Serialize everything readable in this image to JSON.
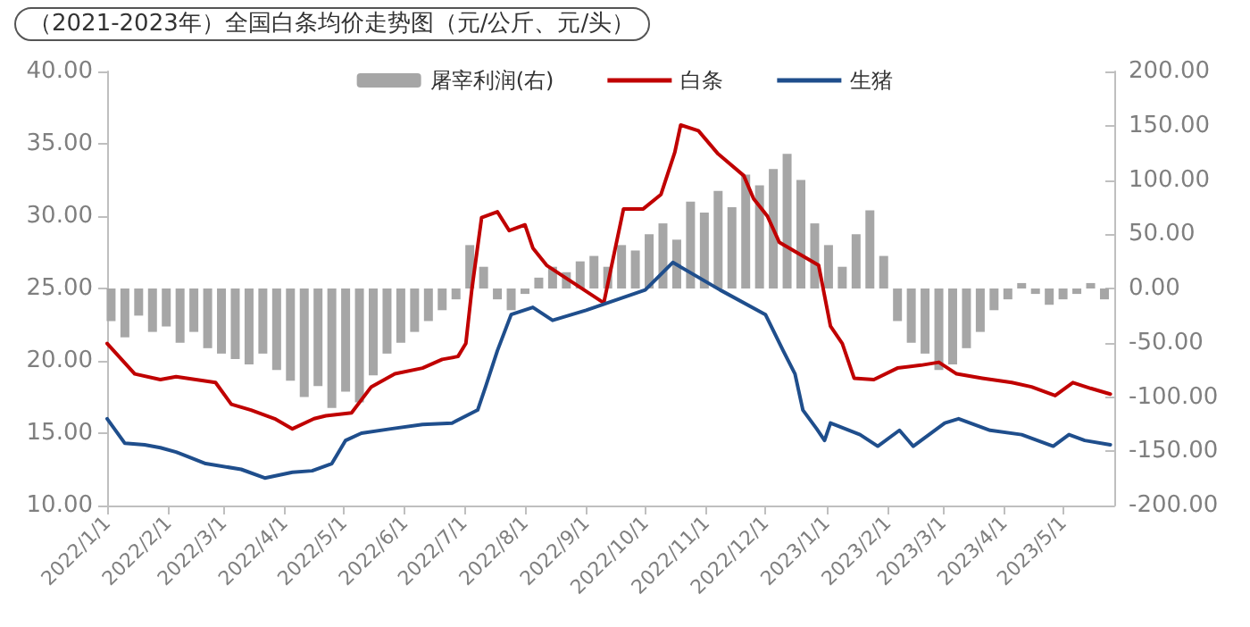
{
  "chart_data": {
    "type": "line",
    "title": "（2021-2023年）全国白条均价走势图（元/公斤、元/头）",
    "xlim": [
      "2022-01-01",
      "2023-05-27"
    ],
    "xticks": [
      {
        "value": "2022-01-01",
        "label": "2022/1/1"
      },
      {
        "value": "2022-02-01",
        "label": "2022/2/1"
      },
      {
        "value": "2022-03-01",
        "label": "2022/3/1"
      },
      {
        "value": "2022-04-01",
        "label": "2022/4/1"
      },
      {
        "value": "2022-05-01",
        "label": "2022/5/1"
      },
      {
        "value": "2022-06-01",
        "label": "2022/6/1"
      },
      {
        "value": "2022-07-01",
        "label": "2022/7/1"
      },
      {
        "value": "2022-08-01",
        "label": "2022/8/1"
      },
      {
        "value": "2022-09-01",
        "label": "2022/9/1"
      },
      {
        "value": "2022-10-01",
        "label": "2022/10/1"
      },
      {
        "value": "2022-11-01",
        "label": "2022/11/1"
      },
      {
        "value": "2022-12-01",
        "label": "2022/12/1"
      },
      {
        "value": "2023-01-01",
        "label": "2023/1/1"
      },
      {
        "value": "2023-02-01",
        "label": "2023/2/1"
      },
      {
        "value": "2023-03-01",
        "label": "2023/3/1"
      },
      {
        "value": "2023-04-01",
        "label": "2023/4/1"
      },
      {
        "value": "2023-05-01",
        "label": "2023/5/1"
      }
    ],
    "ylim": [
      10,
      40
    ],
    "yticks": [
      {
        "value": 10,
        "label": "10.00"
      },
      {
        "value": 15,
        "label": "15.00"
      },
      {
        "value": 20,
        "label": "20.00"
      },
      {
        "value": 25,
        "label": "25.00"
      },
      {
        "value": 30,
        "label": "30.00"
      },
      {
        "value": 35,
        "label": "35.00"
      },
      {
        "value": 40,
        "label": "40.00"
      }
    ],
    "y2lim": [
      -200,
      200
    ],
    "y2ticks": [
      {
        "value": -200,
        "label": "-200.00"
      },
      {
        "value": -150,
        "label": "-150.00"
      },
      {
        "value": -100,
        "label": "-100.00"
      },
      {
        "value": -50,
        "label": "-50.00"
      },
      {
        "value": 0,
        "label": "0.00"
      },
      {
        "value": 50,
        "label": "50.00"
      },
      {
        "value": 100,
        "label": "100.00"
      },
      {
        "value": 150,
        "label": "150.00"
      },
      {
        "value": 200,
        "label": "200.00"
      }
    ],
    "grid": false,
    "legend": "top",
    "marker": "none",
    "line_style": "solid",
    "series": [
      {
        "name": "屠宰利润(右)",
        "type": "bar",
        "axis": "y2",
        "color": "#a6a6a6",
        "x": [
          "2022-01-03",
          "2022-01-10",
          "2022-01-17",
          "2022-01-24",
          "2022-01-31",
          "2022-02-07",
          "2022-02-14",
          "2022-02-21",
          "2022-02-28",
          "2022-03-07",
          "2022-03-14",
          "2022-03-21",
          "2022-03-28",
          "2022-04-04",
          "2022-04-11",
          "2022-04-18",
          "2022-04-25",
          "2022-05-02",
          "2022-05-09",
          "2022-05-16",
          "2022-05-23",
          "2022-05-30",
          "2022-06-06",
          "2022-06-13",
          "2022-06-20",
          "2022-06-27",
          "2022-07-04",
          "2022-07-11",
          "2022-07-18",
          "2022-07-25",
          "2022-08-01",
          "2022-08-08",
          "2022-08-15",
          "2022-08-22",
          "2022-08-29",
          "2022-09-05",
          "2022-09-12",
          "2022-09-19",
          "2022-09-26",
          "2022-10-03",
          "2022-10-10",
          "2022-10-17",
          "2022-10-24",
          "2022-10-31",
          "2022-11-07",
          "2022-11-14",
          "2022-11-21",
          "2022-11-28",
          "2022-12-05",
          "2022-12-12",
          "2022-12-19",
          "2022-12-26",
          "2023-01-02",
          "2023-01-09",
          "2023-01-16",
          "2023-01-23",
          "2023-01-30",
          "2023-02-06",
          "2023-02-13",
          "2023-02-20",
          "2023-02-27",
          "2023-03-06",
          "2023-03-13",
          "2023-03-20",
          "2023-03-27",
          "2023-04-03",
          "2023-04-10",
          "2023-04-17",
          "2023-04-24",
          "2023-05-01",
          "2023-05-08",
          "2023-05-15",
          "2023-05-22"
        ],
        "values": [
          -30,
          -45,
          -25,
          -40,
          -35,
          -50,
          -40,
          -55,
          -60,
          -65,
          -70,
          -60,
          -75,
          -85,
          -100,
          -90,
          -110,
          -95,
          -105,
          -80,
          -60,
          -50,
          -40,
          -30,
          -20,
          -10,
          40,
          20,
          -10,
          -20,
          -5,
          10,
          20,
          15,
          25,
          30,
          20,
          40,
          35,
          50,
          60,
          45,
          80,
          70,
          90,
          75,
          105,
          95,
          110,
          124,
          100,
          60,
          40,
          20,
          50,
          72,
          30,
          -30,
          -50,
          -60,
          -75,
          -70,
          -55,
          -40,
          -20,
          -10,
          5,
          -5,
          -15,
          -10,
          -5,
          5,
          -10
        ]
      },
      {
        "name": "白条",
        "color": "#c00000",
        "x": [
          "2022-01-01",
          "2022-01-15",
          "2022-01-28",
          "2022-02-05",
          "2022-02-25",
          "2022-03-05",
          "2022-03-15",
          "2022-03-27",
          "2022-04-05",
          "2022-04-16",
          "2022-04-22",
          "2022-05-05",
          "2022-05-15",
          "2022-05-27",
          "2022-06-10",
          "2022-06-20",
          "2022-06-28",
          "2022-07-02",
          "2022-07-05",
          "2022-07-10",
          "2022-07-18",
          "2022-07-24",
          "2022-08-01",
          "2022-08-05",
          "2022-08-12",
          "2022-09-10",
          "2022-09-20",
          "2022-09-30",
          "2022-10-09",
          "2022-10-16",
          "2022-10-19",
          "2022-10-28",
          "2022-11-07",
          "2022-11-20",
          "2022-11-25",
          "2022-12-02",
          "2022-12-08",
          "2022-12-28",
          "2023-01-03",
          "2023-01-09",
          "2023-01-15",
          "2023-01-25",
          "2023-02-06",
          "2023-02-18",
          "2023-02-27",
          "2023-03-08",
          "2023-03-21",
          "2023-04-05",
          "2023-04-15",
          "2023-04-27",
          "2023-05-06",
          "2023-05-15",
          "2023-05-25"
        ],
        "values": [
          21.2,
          19.1,
          18.7,
          18.9,
          18.5,
          17.0,
          16.6,
          16.0,
          15.3,
          16.0,
          16.2,
          16.4,
          18.2,
          19.1,
          19.5,
          20.1,
          20.3,
          21.2,
          24.9,
          29.9,
          30.3,
          29.0,
          29.4,
          27.8,
          26.6,
          24.0,
          30.5,
          30.5,
          31.5,
          34.4,
          36.3,
          35.9,
          34.3,
          32.8,
          31.2,
          30.0,
          28.2,
          26.6,
          22.4,
          21.2,
          18.8,
          18.7,
          19.5,
          19.7,
          19.9,
          19.1,
          18.8,
          18.5,
          18.2,
          17.6,
          18.5,
          18.1,
          17.7
        ]
      },
      {
        "name": "生猪",
        "color": "#1f4e8c",
        "x": [
          "2022-01-01",
          "2022-01-10",
          "2022-01-20",
          "2022-01-28",
          "2022-02-05",
          "2022-02-20",
          "2022-03-10",
          "2022-03-22",
          "2022-04-05",
          "2022-04-15",
          "2022-04-25",
          "2022-05-02",
          "2022-05-10",
          "2022-05-25",
          "2022-06-10",
          "2022-06-25",
          "2022-07-08",
          "2022-07-12",
          "2022-07-18",
          "2022-07-25",
          "2022-08-05",
          "2022-08-15",
          "2022-09-01",
          "2022-10-01",
          "2022-10-15",
          "2022-11-08",
          "2022-12-01",
          "2022-12-10",
          "2022-12-16",
          "2022-12-20",
          "2022-12-27",
          "2022-12-31",
          "2023-01-03",
          "2023-01-18",
          "2023-01-27",
          "2023-02-07",
          "2023-02-14",
          "2023-03-02",
          "2023-03-09",
          "2023-03-25",
          "2023-04-10",
          "2023-04-26",
          "2023-05-04",
          "2023-05-12",
          "2023-05-25"
        ],
        "values": [
          16.0,
          14.3,
          14.2,
          14.0,
          13.7,
          12.9,
          12.5,
          11.9,
          12.3,
          12.4,
          12.9,
          14.5,
          15.0,
          15.3,
          15.6,
          15.7,
          16.6,
          18.2,
          20.7,
          23.2,
          23.7,
          22.8,
          23.5,
          24.9,
          26.8,
          24.9,
          23.2,
          20.7,
          19.1,
          16.6,
          15.3,
          14.5,
          15.7,
          14.9,
          14.1,
          15.2,
          14.1,
          15.7,
          16.0,
          15.2,
          14.9,
          14.1,
          14.9,
          14.5,
          14.2
        ]
      }
    ]
  }
}
